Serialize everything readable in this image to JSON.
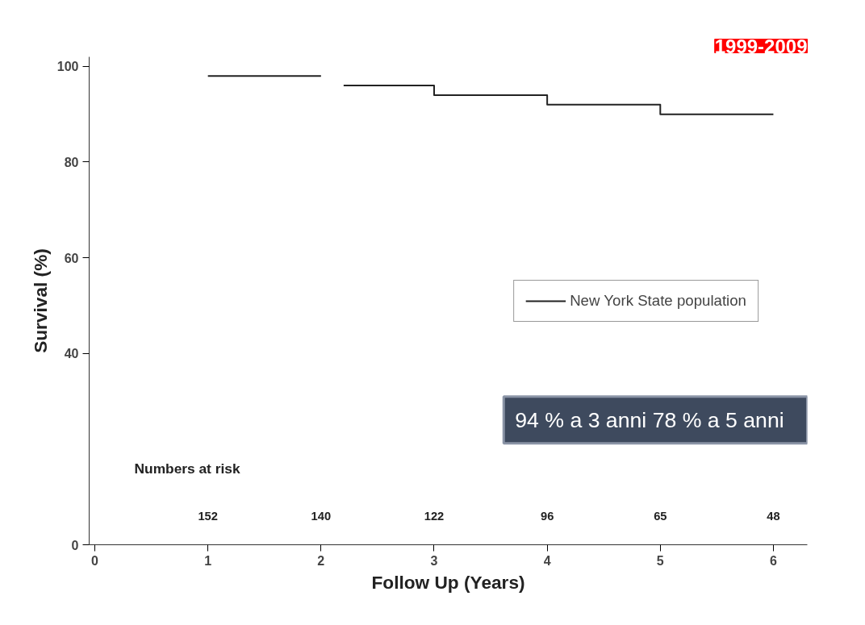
{
  "chart_data": {
    "type": "step",
    "title": "1999-2009",
    "xlabel": "Follow Up (Years)",
    "ylabel": "Survival (%)",
    "x": [
      1,
      2,
      2.2,
      3,
      4,
      5,
      6
    ],
    "series": [
      {
        "name": "New York State population",
        "color": "#222222",
        "values": [
          98,
          null,
          96,
          94,
          92,
          90,
          90
        ]
      }
    ],
    "xlim": [
      -0.05,
      6.3
    ],
    "xticks": [
      0,
      1,
      2,
      3,
      4,
      5,
      6
    ],
    "ylim": [
      0,
      102
    ],
    "yticks": [
      0,
      40,
      60,
      80,
      100
    ],
    "annotations": [
      "Numbers at risk",
      "152",
      "140",
      "122",
      "96",
      "65",
      "48",
      "94 % a 3 anni   78 % a 5 anni"
    ],
    "legend": "right",
    "grid": false,
    "line_style": "solid",
    "marker": "none"
  }
}
